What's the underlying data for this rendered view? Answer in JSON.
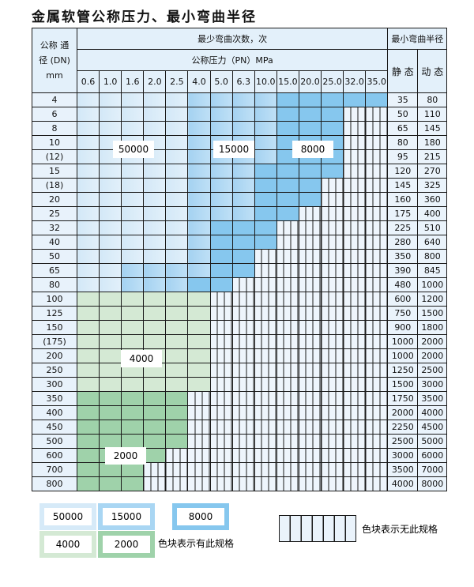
{
  "title": "金属软管公称压力、最小弯曲半径",
  "header": {
    "dn": "公称 通径 (DN) mm",
    "bend_count": "最少弯曲次数，次",
    "min_radius": "最小弯曲半径",
    "pressure": "公称压力（PN）MPa",
    "static": "静 态",
    "dynamic": "动 态",
    "pressures": [
      "0.6",
      "1.0",
      "1.6",
      "2.0",
      "2.5",
      "4.0",
      "5.0",
      "6.3",
      "10.0",
      "15.0",
      "20.0",
      "25.0",
      "32.0",
      "35.0"
    ]
  },
  "spec_legend": {
    "a": "50000",
    "b": "15000",
    "c": "8000",
    "d": "4000",
    "e": "2000",
    "x": "无此规格"
  },
  "colors": {
    "a": "#d6eaf8",
    "b": "#a9d6f3",
    "c": "#86c7ee",
    "d": "#d4e9d4",
    "e": "#9fd2aa",
    "hatch": "#eef5fc",
    "header": "#e3f0fa"
  },
  "rows": [
    {
      "dn": "4",
      "static": "35",
      "dynamic": "80",
      "spec": "aaaaabbbbccccc"
    },
    {
      "dn": "6",
      "static": "50",
      "dynamic": "110",
      "spec": "aaaaabbbbcccxx"
    },
    {
      "dn": "8",
      "static": "65",
      "dynamic": "145",
      "spec": "aaaaabbbbcccxx"
    },
    {
      "dn": "10",
      "static": "80",
      "dynamic": "180",
      "spec": "aaaaabbbbcccxx"
    },
    {
      "dn": "(12)",
      "static": "95",
      "dynamic": "215",
      "spec": "aaaaabbbbcccxx"
    },
    {
      "dn": "15",
      "static": "120",
      "dynamic": "270",
      "spec": "aaaaabbbccccxx"
    },
    {
      "dn": "(18)",
      "static": "145",
      "dynamic": "325",
      "spec": "aaaaabbbcccxxx"
    },
    {
      "dn": "20",
      "static": "160",
      "dynamic": "360",
      "spec": "aaaaabbbcccxxx"
    },
    {
      "dn": "25",
      "static": "175",
      "dynamic": "400",
      "spec": "aaaaabbbccxxxx"
    },
    {
      "dn": "32",
      "static": "225",
      "dynamic": "510",
      "spec": "aaaaabcccxxxxx"
    },
    {
      "dn": "40",
      "static": "280",
      "dynamic": "640",
      "spec": "aaaaabcccxxxxx"
    },
    {
      "dn": "50",
      "static": "350",
      "dynamic": "800",
      "spec": "aaaaabccxxxxxx"
    },
    {
      "dn": "65",
      "static": "390",
      "dynamic": "845",
      "spec": "aabbbbccxxxxxx"
    },
    {
      "dn": "80",
      "static": "480",
      "dynamic": "1000",
      "spec": "aabbbccxxxxxxx"
    },
    {
      "dn": "100",
      "static": "600",
      "dynamic": "1200",
      "spec": "ddddddxxxxxxxx"
    },
    {
      "dn": "125",
      "static": "750",
      "dynamic": "1500",
      "spec": "ddddddxxxxxxxx"
    },
    {
      "dn": "150",
      "static": "900",
      "dynamic": "1800",
      "spec": "ddddddxxxxxxxx"
    },
    {
      "dn": "(175)",
      "static": "1000",
      "dynamic": "2000",
      "spec": "ddddddxxxxxxxx"
    },
    {
      "dn": "200",
      "static": "1000",
      "dynamic": "2000",
      "spec": "ddddddxxxxxxxx"
    },
    {
      "dn": "250",
      "static": "1250",
      "dynamic": "2500",
      "spec": "ddddddxxxxxxxx"
    },
    {
      "dn": "300",
      "static": "1500",
      "dynamic": "3000",
      "spec": "ddddddxxxxxxxx"
    },
    {
      "dn": "350",
      "static": "1750",
      "dynamic": "3500",
      "spec": "eeeeexxxxxxxxx"
    },
    {
      "dn": "400",
      "static": "2000",
      "dynamic": "4000",
      "spec": "eeeeexxxxxxxxx"
    },
    {
      "dn": "450",
      "static": "2250",
      "dynamic": "4500",
      "spec": "eeeeexxxxxxxxx"
    },
    {
      "dn": "500",
      "static": "2500",
      "dynamic": "5000",
      "spec": "eeeeexxxxxxxxx"
    },
    {
      "dn": "600",
      "static": "3000",
      "dynamic": "6000",
      "spec": "eeeexxxxxxxxxx"
    },
    {
      "dn": "700",
      "static": "3500",
      "dynamic": "7000",
      "spec": "eeexxxxxxxxxxx"
    },
    {
      "dn": "800",
      "static": "4000",
      "dynamic": "8000",
      "spec": "eeexxxxxxxxxxx"
    }
  ],
  "legend": {
    "has_spec": "色块表示有此规格",
    "no_spec": "色块表示无此规格"
  }
}
